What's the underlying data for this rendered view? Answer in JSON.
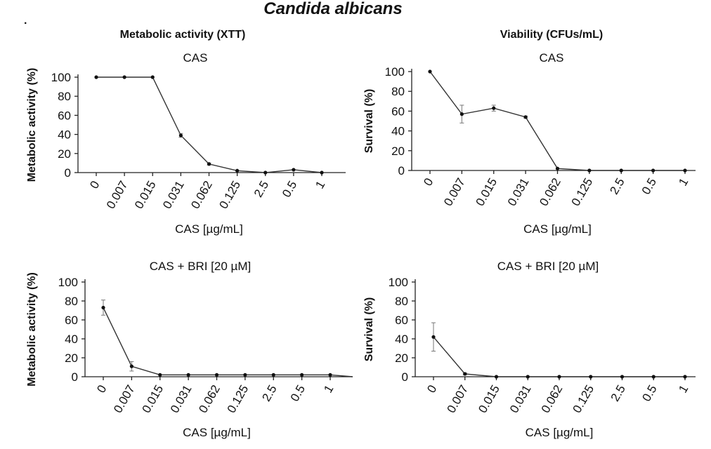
{
  "figure": {
    "title": "Candida albicans",
    "bullet": "·",
    "col_left": "Metabolic activity (XTT)",
    "col_right": "Viability (CFUs/mL)"
  },
  "chart_data": [
    {
      "type": "line",
      "panel": "top-left",
      "title": "CAS",
      "xlabel": "CAS [µg/mL]",
      "ylabel": "Metabolic activity (%)",
      "categories": [
        "0",
        "0.007",
        "0.015",
        "0.031",
        "0.062",
        "0.125",
        "2.5",
        "0.5",
        "1"
      ],
      "values": [
        100,
        100,
        100,
        39,
        9,
        2,
        0,
        3,
        0
      ],
      "errors": [
        0,
        0,
        0,
        2,
        1,
        0,
        0,
        0,
        0
      ],
      "ylim": [
        0,
        100
      ],
      "yticks": [
        0,
        20,
        40,
        60,
        80,
        100
      ],
      "extend_line": false
    },
    {
      "type": "line",
      "panel": "top-right",
      "title": "CAS",
      "xlabel": "CAS [µg/mL]",
      "ylabel": "Survival (%)",
      "categories": [
        "0",
        "0.007",
        "0.015",
        "0.031",
        "0.062",
        "0.125",
        "2.5",
        "0.5",
        "1"
      ],
      "values": [
        100,
        57,
        63,
        54,
        2,
        0,
        0,
        0,
        0
      ],
      "errors": [
        0,
        9,
        3,
        1,
        0,
        0,
        0,
        0,
        0
      ],
      "ylim": [
        0,
        100
      ],
      "yticks": [
        0,
        20,
        40,
        60,
        80,
        100
      ],
      "extend_line": false
    },
    {
      "type": "line",
      "panel": "bottom-left",
      "title": "CAS + BRI [20 µM]",
      "xlabel": "CAS [µg/mL]",
      "ylabel": "Metabolic activity (%)",
      "categories": [
        "0",
        "0.007",
        "0.015",
        "0.031",
        "0.062",
        "0.125",
        "2.5",
        "0.5",
        "1"
      ],
      "values": [
        73,
        11,
        2,
        2,
        2,
        2,
        2,
        2,
        2
      ],
      "errors": [
        8,
        5,
        0,
        0,
        0,
        0,
        0,
        0,
        0
      ],
      "ylim": [
        0,
        100
      ],
      "yticks": [
        0,
        20,
        40,
        60,
        80,
        100
      ],
      "extend_line": true
    },
    {
      "type": "line",
      "panel": "bottom-right",
      "title": "CAS + BRI [20 µM]",
      "xlabel": "CAS [µg/mL]",
      "ylabel": "Survival (%)",
      "categories": [
        "0",
        "0.007",
        "0.015",
        "0.031",
        "0.062",
        "0.125",
        "2.5",
        "0.5",
        "1"
      ],
      "values": [
        42,
        3,
        0,
        0,
        0,
        0,
        0,
        0,
        0
      ],
      "errors": [
        15,
        1,
        0,
        0,
        0,
        0,
        0,
        0,
        0
      ],
      "ylim": [
        0,
        100
      ],
      "yticks": [
        0,
        20,
        40,
        60,
        80,
        100
      ],
      "extend_line": false
    }
  ]
}
